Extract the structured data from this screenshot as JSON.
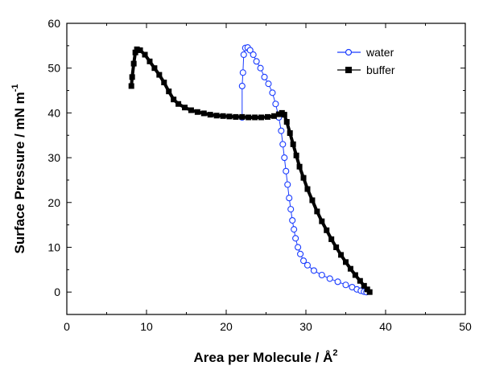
{
  "chart_data": {
    "type": "scatter",
    "xlabel": "Area per Molecule  / Å",
    "xlabel_sup": "2",
    "ylabel": "Surface Pressure / mN m",
    "ylabel_sup": "-1",
    "xlim": [
      0,
      50
    ],
    "ylim": [
      -5,
      60
    ],
    "x_ticks": [
      0,
      10,
      20,
      30,
      40,
      50
    ],
    "y_ticks": [
      0,
      10,
      20,
      30,
      40,
      50,
      60
    ],
    "grid": false,
    "legend_position": "top-right",
    "series": [
      {
        "name": "water",
        "color": "#1a3cff",
        "marker": "open-circle",
        "x": [
          22.0,
          22.0,
          22.1,
          22.2,
          22.4,
          22.7,
          23.0,
          23.4,
          23.8,
          24.3,
          24.8,
          25.3,
          25.8,
          26.2,
          26.6,
          26.9,
          27.1,
          27.3,
          27.5,
          27.7,
          27.9,
          28.1,
          28.3,
          28.5,
          28.7,
          29.0,
          29.3,
          29.7,
          30.2,
          31.0,
          32.0,
          33.0,
          34.0,
          35.0,
          35.8,
          36.4,
          36.9,
          37.3,
          37.6
        ],
        "y": [
          39.0,
          46.0,
          49.0,
          53.0,
          54.5,
          54.6,
          54.0,
          53.0,
          51.5,
          50.0,
          48.0,
          46.5,
          44.5,
          42.0,
          39.0,
          36.0,
          33.0,
          30.0,
          27.0,
          24.0,
          21.0,
          18.5,
          16.0,
          14.0,
          12.0,
          10.0,
          8.5,
          7.0,
          6.0,
          4.8,
          3.8,
          3.0,
          2.3,
          1.6,
          1.1,
          0.6,
          0.3,
          0.1,
          0.0
        ]
      },
      {
        "name": "buffer",
        "color": "#000000",
        "marker": "filled-square",
        "x": [
          8.1,
          8.2,
          8.4,
          8.6,
          8.8,
          9.2,
          9.8,
          10.4,
          11.0,
          11.6,
          12.2,
          12.8,
          13.4,
          14.0,
          14.8,
          15.6,
          16.4,
          17.2,
          18.0,
          18.8,
          19.6,
          20.4,
          21.2,
          22.0,
          22.8,
          23.6,
          24.4,
          25.2,
          26.0,
          26.6,
          27.0,
          27.3,
          27.6,
          28.0,
          28.4,
          28.8,
          29.2,
          29.7,
          30.2,
          30.8,
          31.4,
          32.0,
          32.6,
          33.2,
          33.8,
          34.4,
          35.0,
          35.6,
          36.2,
          36.8,
          37.3,
          37.7,
          38.0
        ],
        "y": [
          46.0,
          48.0,
          51.0,
          53.5,
          54.2,
          54.0,
          53.0,
          51.5,
          50.0,
          48.5,
          46.8,
          44.8,
          43.0,
          42.0,
          41.2,
          40.6,
          40.2,
          39.9,
          39.6,
          39.4,
          39.3,
          39.2,
          39.1,
          39.1,
          39.0,
          39.0,
          39.0,
          39.1,
          39.3,
          39.7,
          40.0,
          39.6,
          38.0,
          35.5,
          33.0,
          30.5,
          28.0,
          25.5,
          23.0,
          20.5,
          18.0,
          15.8,
          13.8,
          11.8,
          10.0,
          8.3,
          6.7,
          5.2,
          3.8,
          2.5,
          1.4,
          0.6,
          0.0
        ]
      }
    ]
  }
}
